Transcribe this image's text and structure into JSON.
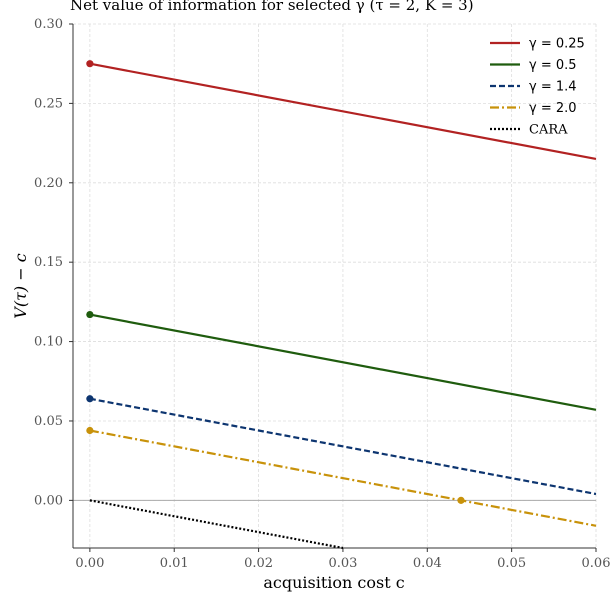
{
  "chart_data": {
    "type": "line",
    "title": "Net value of information for selected γ  (τ = 2, K = 3)",
    "xlabel": "acquisition cost c",
    "ylabel": "V(τ) − c",
    "xlim": [
      -0.002,
      0.06
    ],
    "ylim": [
      -0.03,
      0.3
    ],
    "xticks": [
      0.0,
      0.01,
      0.02,
      0.03,
      0.04,
      0.05,
      0.06
    ],
    "xtick_labels": [
      "0.00",
      "0.01",
      "0.02",
      "0.03",
      "0.04",
      "0.05",
      "0.06"
    ],
    "yticks": [
      0.0,
      0.05,
      0.1,
      0.15,
      0.2,
      0.25,
      0.3
    ],
    "ytick_labels": [
      "0.00",
      "0.05",
      "0.10",
      "0.15",
      "0.20",
      "0.25",
      "0.30"
    ],
    "grid": true,
    "legend_position": "top-right",
    "zero_line": true,
    "series": [
      {
        "name": "γ = 0.25",
        "color": "#b22222",
        "dash": "solid",
        "x": [
          0.0,
          0.06
        ],
        "y": [
          0.275,
          0.215
        ],
        "markers": [
          {
            "x": 0.0,
            "y": 0.275
          }
        ]
      },
      {
        "name": "γ = 0.5",
        "color": "#1f5c0e",
        "dash": "solid",
        "x": [
          0.0,
          0.06
        ],
        "y": [
          0.117,
          0.057
        ],
        "markers": [
          {
            "x": 0.0,
            "y": 0.117
          }
        ]
      },
      {
        "name": "γ = 1.4",
        "color": "#0d3570",
        "dash": "dashed",
        "x": [
          0.0,
          0.06
        ],
        "y": [
          0.064,
          0.004
        ],
        "markers": [
          {
            "x": 0.0,
            "y": 0.064
          }
        ]
      },
      {
        "name": "γ = 2.0",
        "color": "#c8920a",
        "dash": "dashdot",
        "x": [
          0.0,
          0.06
        ],
        "y": [
          0.044,
          -0.016
        ],
        "markers": [
          {
            "x": 0.0,
            "y": 0.044
          },
          {
            "x": 0.044,
            "y": 0.0
          }
        ]
      },
      {
        "name": "CARA",
        "color": "#000000",
        "dash": "dotted",
        "x": [
          0.0,
          0.03
        ],
        "y": [
          0.0,
          -0.03
        ],
        "markers": []
      }
    ]
  }
}
